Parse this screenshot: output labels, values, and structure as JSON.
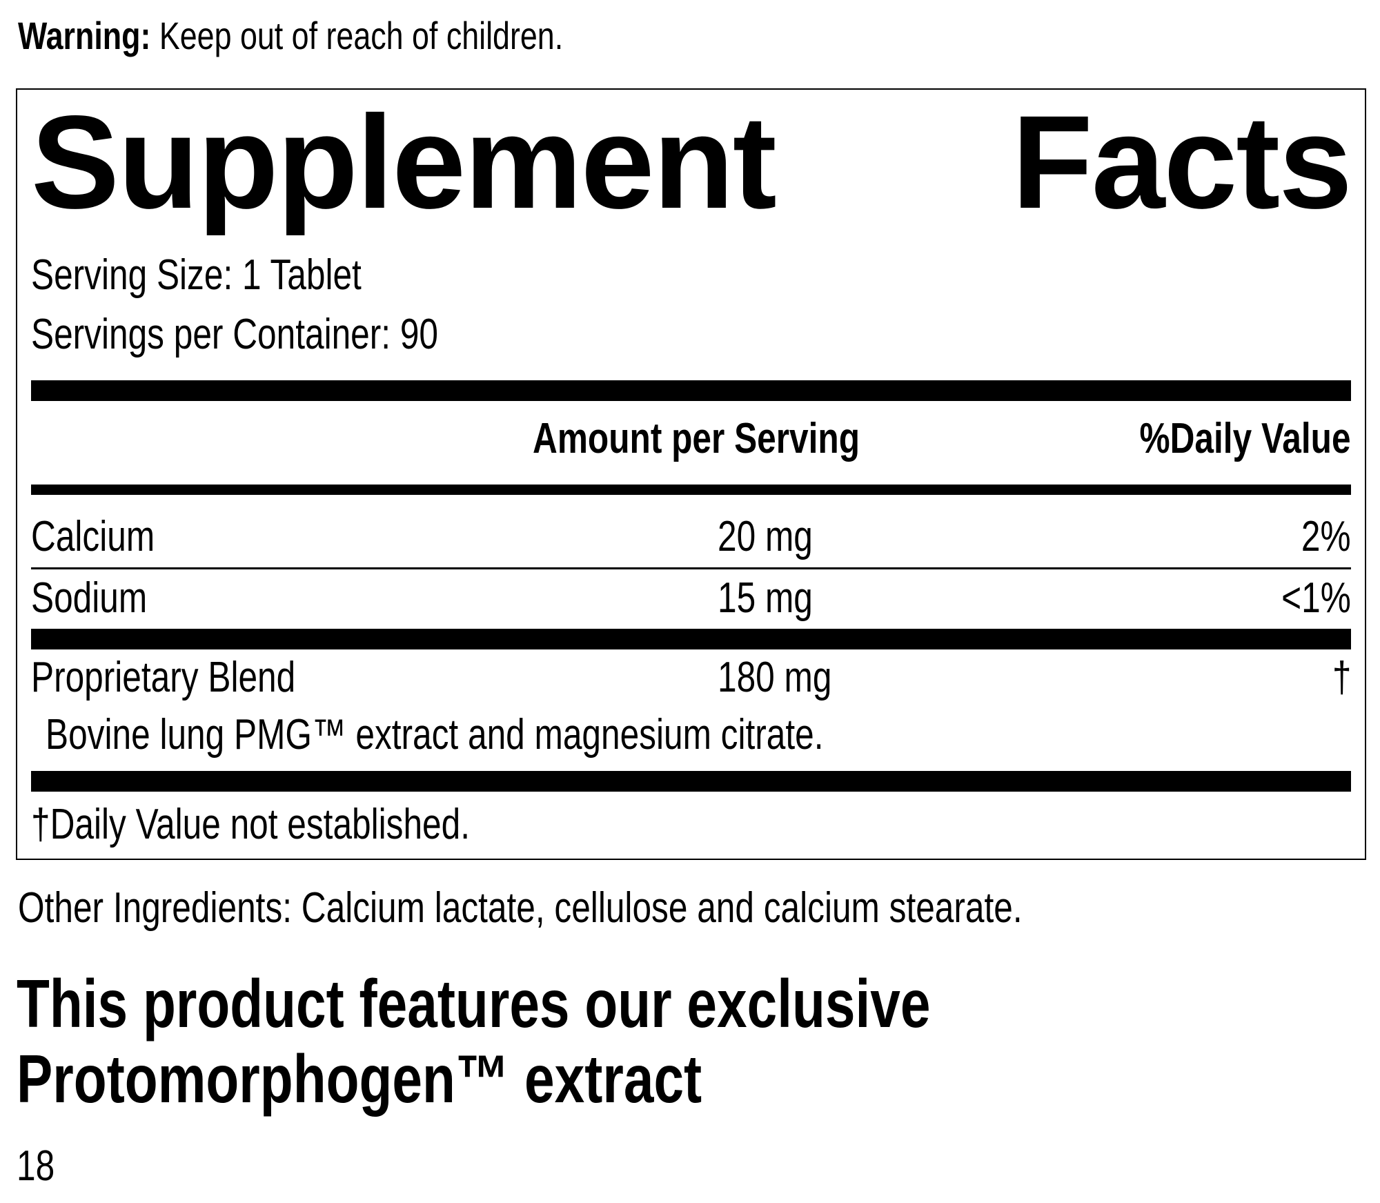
{
  "warning": {
    "label": "Warning:",
    "text": " Keep out of reach of children."
  },
  "facts": {
    "title_word1": "Supplement",
    "title_word2": "Facts",
    "serving_size": "Serving Size: 1 Tablet",
    "servings_per_container": "Servings per Container: 90",
    "header": {
      "amount": "Amount per Serving",
      "daily_value": "%Daily Value"
    },
    "rows": [
      {
        "name": "Calcium",
        "amount": "20 mg",
        "dv": "2%"
      },
      {
        "name": "Sodium",
        "amount": "15 mg",
        "dv": "<1%"
      },
      {
        "name": "Proprietary Blend",
        "amount": "180 mg",
        "dv": "†"
      }
    ],
    "blend_ingredients": "Bovine lung PMG™ extract and magnesium citrate.",
    "footnote": "†Daily Value not established."
  },
  "other_ingredients": "Other Ingredients: Calcium lactate, cellulose and calcium stearate.",
  "feature_line1": "This product features our exclusive",
  "feature_line2": "Protomorphogen™ extract",
  "page_number": "18"
}
